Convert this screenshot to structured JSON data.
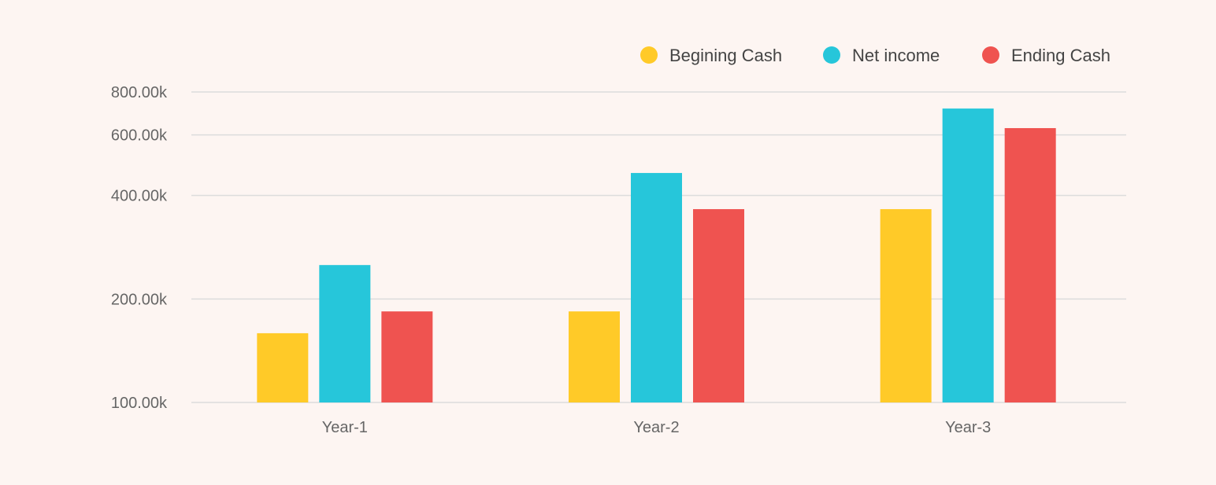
{
  "chart_data": {
    "type": "bar",
    "categories": [
      "Year-1",
      "Year-2",
      "Year-3"
    ],
    "series": [
      {
        "name": "Begining Cash",
        "color": "#ffca28",
        "values": [
          159000,
          184000,
          365000
        ]
      },
      {
        "name": "Net income",
        "color": "#26c6da",
        "values": [
          251000,
          465000,
          716000
        ]
      },
      {
        "name": "Ending Cash",
        "color": "#ef5350",
        "values": [
          184000,
          365000,
          628000
        ]
      }
    ],
    "yscale": "log",
    "ylim": [
      100000,
      800000
    ],
    "yticks": [
      100000,
      200000,
      400000,
      600000,
      800000
    ],
    "ytick_labels": [
      "100.00k",
      "200.00k",
      "400.00k",
      "600.00k",
      "800.00k"
    ],
    "grid": true,
    "legend_position": "top-right",
    "background": "#fdf5f2"
  }
}
